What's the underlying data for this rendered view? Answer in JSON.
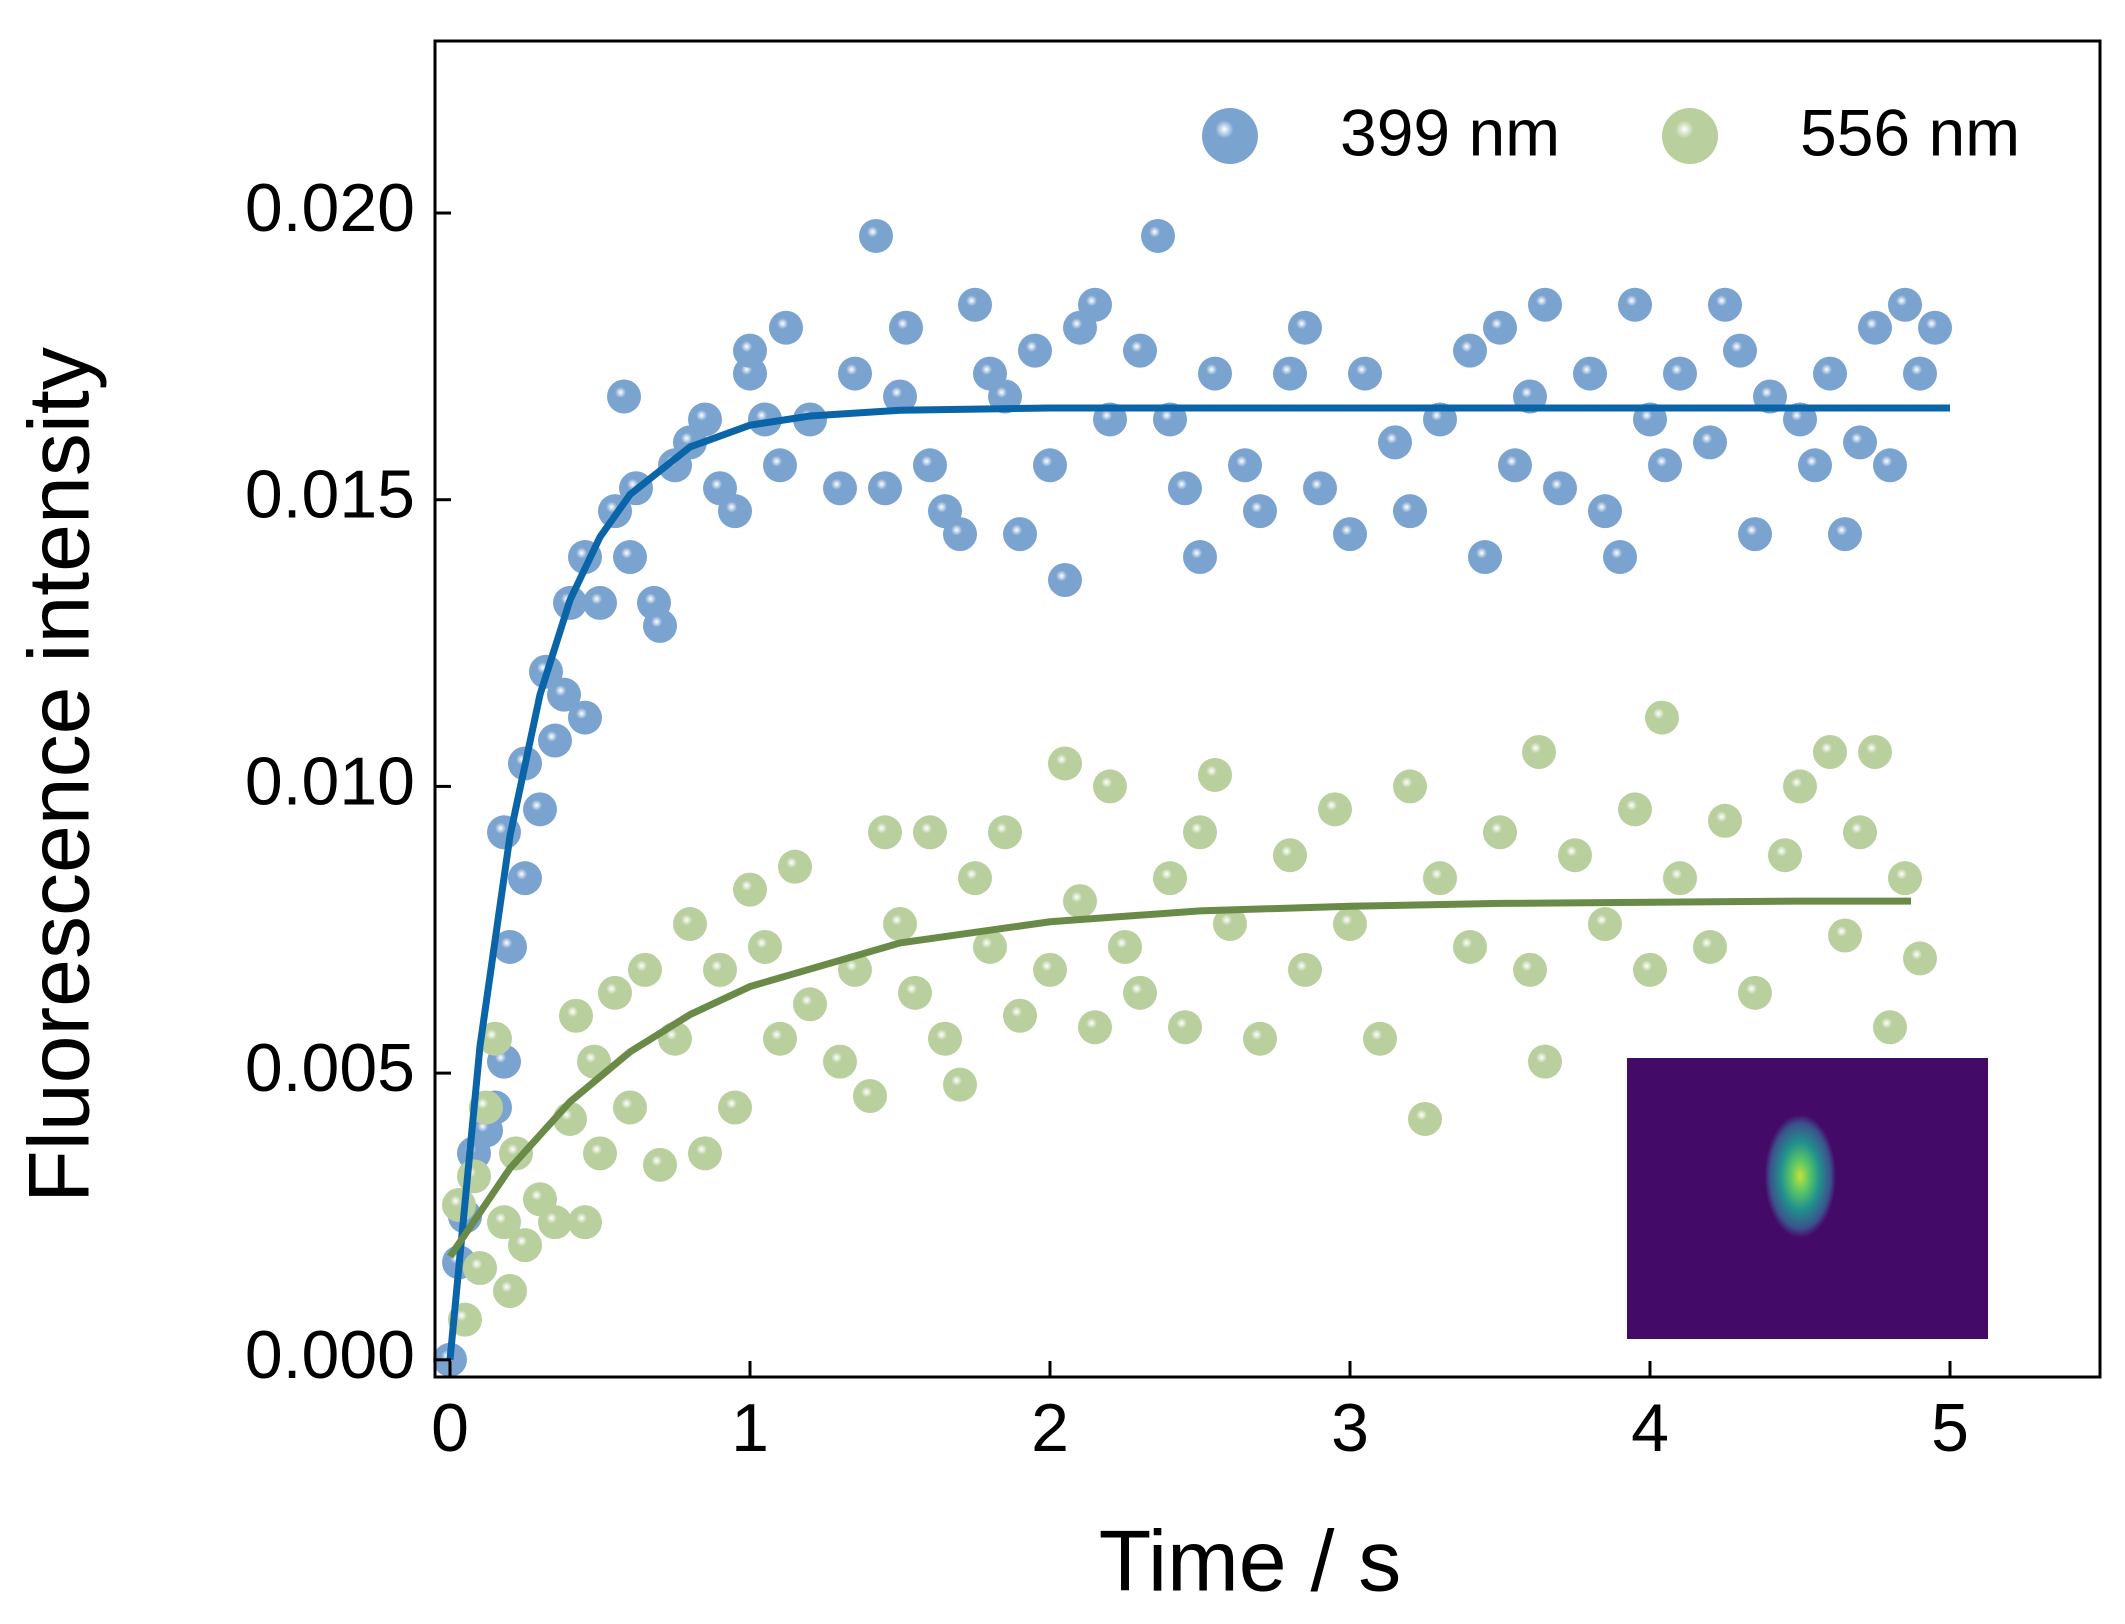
{
  "chart_data": {
    "type": "scatter",
    "xlabel": "Time / s",
    "ylabel": "Fluorescence intensity",
    "xlim": [
      -0.05,
      5.5
    ],
    "ylim": [
      -0.0003,
      0.023
    ],
    "xticks": [
      0,
      1,
      2,
      3,
      4,
      5
    ],
    "yticks": [
      {
        "value": 0,
        "label": "0.000"
      },
      {
        "value": 0.005,
        "label": "0.005"
      },
      {
        "value": 0.01,
        "label": "0.010"
      },
      {
        "value": 0.015,
        "label": "0.015"
      },
      {
        "value": 0.02,
        "label": "0.020"
      }
    ],
    "legend": "upper right",
    "series": [
      {
        "name": "399 nm",
        "color": "#7ba3d0",
        "x": [
          0,
          0.03,
          0.05,
          0.08,
          0.12,
          0.15,
          0.18,
          0.2,
          0.18,
          0.25,
          0.25,
          0.3,
          0.32,
          0.35,
          0.38,
          0.4,
          0.45,
          0.45,
          0.5,
          0.55,
          0.58,
          0.6,
          0.62,
          0.68,
          0.7,
          0.75,
          0.8,
          0.85,
          0.9,
          0.95,
          1.0,
          1.0,
          1.05,
          1.1,
          1.12,
          1.2,
          1.3,
          1.35,
          1.42,
          1.45,
          1.5,
          1.52,
          1.6,
          1.65,
          1.7,
          1.75,
          1.8,
          1.85,
          1.9,
          1.95,
          2.0,
          2.05,
          2.1,
          2.15,
          2.2,
          2.3,
          2.36,
          2.4,
          2.45,
          2.5,
          2.55,
          2.65,
          2.7,
          2.8,
          2.85,
          2.9,
          3.0,
          3.05,
          3.15,
          3.2,
          3.3,
          3.4,
          3.45,
          3.5,
          3.55,
          3.6,
          3.65,
          3.7,
          3.8,
          3.85,
          3.9,
          3.95,
          4.0,
          4.05,
          4.1,
          4.2,
          4.25,
          4.3,
          4.35,
          4.4,
          4.5,
          4.55,
          4.6,
          4.65,
          4.7,
          4.75,
          4.8,
          4.85,
          4.9,
          4.95
        ],
        "values": [
          0,
          0.0017,
          0.0025,
          0.0036,
          0.004,
          0.0044,
          0.0052,
          0.0072,
          0.0092,
          0.0084,
          0.0104,
          0.0096,
          0.012,
          0.0108,
          0.0116,
          0.0132,
          0.0112,
          0.014,
          0.0132,
          0.0148,
          0.0168,
          0.014,
          0.0152,
          0.0132,
          0.0128,
          0.0156,
          0.016,
          0.0164,
          0.0152,
          0.0148,
          0.0172,
          0.0176,
          0.0164,
          0.0156,
          0.018,
          0.0164,
          0.0152,
          0.0172,
          0.0196,
          0.0152,
          0.0168,
          0.018,
          0.0156,
          0.0148,
          0.0144,
          0.0184,
          0.0172,
          0.0168,
          0.0144,
          0.0176,
          0.0156,
          0.0136,
          0.018,
          0.0184,
          0.0164,
          0.0176,
          0.0196,
          0.0164,
          0.0152,
          0.014,
          0.0172,
          0.0156,
          0.0148,
          0.0172,
          0.018,
          0.0152,
          0.0144,
          0.0172,
          0.016,
          0.0148,
          0.0164,
          0.0176,
          0.014,
          0.018,
          0.0156,
          0.0168,
          0.0184,
          0.0152,
          0.0172,
          0.0148,
          0.014,
          0.0184,
          0.0164,
          0.0156,
          0.0172,
          0.016,
          0.0184,
          0.0176,
          0.0144,
          0.0168,
          0.0164,
          0.0156,
          0.0172,
          0.0144,
          0.016,
          0.018,
          0.0156,
          0.0184,
          0.0172,
          0.018
        ]
      },
      {
        "name": "556 nm",
        "color": "#b9cf9e",
        "x": [
          0.03,
          0.05,
          0.08,
          0.1,
          0.12,
          0.15,
          0.18,
          0.2,
          0.22,
          0.25,
          0.3,
          0.35,
          0.4,
          0.42,
          0.45,
          0.48,
          0.5,
          0.55,
          0.6,
          0.65,
          0.7,
          0.75,
          0.8,
          0.85,
          0.9,
          0.95,
          1.0,
          1.05,
          1.1,
          1.15,
          1.2,
          1.3,
          1.35,
          1.4,
          1.45,
          1.5,
          1.55,
          1.6,
          1.65,
          1.7,
          1.75,
          1.8,
          1.85,
          1.9,
          2.0,
          2.05,
          2.1,
          2.15,
          2.2,
          2.25,
          2.3,
          2.4,
          2.45,
          2.5,
          2.55,
          2.6,
          2.7,
          2.8,
          2.85,
          2.95,
          3.0,
          3.1,
          3.2,
          3.25,
          3.3,
          3.4,
          3.5,
          3.6,
          3.65,
          3.63,
          3.75,
          3.85,
          3.95,
          4.0,
          4.04,
          4.1,
          4.2,
          4.25,
          4.35,
          4.45,
          4.5,
          4.6,
          4.65,
          4.7,
          4.75,
          4.8,
          4.85,
          4.9
        ],
        "values": [
          0.0027,
          0.0007,
          0.0032,
          0.0016,
          0.0044,
          0.0056,
          0.0024,
          0.0012,
          0.0036,
          0.002,
          0.0028,
          0.0024,
          0.0042,
          0.006,
          0.0024,
          0.0052,
          0.0036,
          0.0064,
          0.0044,
          0.0068,
          0.0034,
          0.0056,
          0.0076,
          0.0036,
          0.0068,
          0.0044,
          0.0082,
          0.0072,
          0.0056,
          0.0086,
          0.0062,
          0.0052,
          0.0068,
          0.0046,
          0.0092,
          0.0076,
          0.0064,
          0.0092,
          0.0056,
          0.0048,
          0.0084,
          0.0072,
          0.0092,
          0.006,
          0.0068,
          0.0104,
          0.008,
          0.0058,
          0.01,
          0.0072,
          0.0064,
          0.0084,
          0.0058,
          0.0092,
          0.0102,
          0.0076,
          0.0056,
          0.0088,
          0.0068,
          0.0096,
          0.0076,
          0.0056,
          0.01,
          0.0042,
          0.0084,
          0.0072,
          0.0092,
          0.0068,
          0.0052,
          0.0106,
          0.0088,
          0.0076,
          0.0096,
          0.0068,
          0.0112,
          0.0084,
          0.0072,
          0.0094,
          0.0064,
          0.0088,
          0.01,
          0.0106,
          0.0074,
          0.0092,
          0.0106,
          0.0058,
          0.0084,
          0.007
        ]
      }
    ],
    "fits": [
      {
        "color": "#0a64a8",
        "x": [
          0,
          0.1,
          0.2,
          0.3,
          0.4,
          0.5,
          0.6,
          0.8,
          1.0,
          1.2,
          1.5,
          2,
          3,
          4,
          5
        ],
        "values": [
          0,
          0.00547,
          0.00914,
          0.0116,
          0.01325,
          0.01435,
          0.01509,
          0.01592,
          0.0163,
          0.01646,
          0.01656,
          0.0166,
          0.0166,
          0.0166,
          0.0166
        ]
      },
      {
        "color": "#6a8a48",
        "x": [
          0,
          0.2,
          0.4,
          0.6,
          0.8,
          1,
          1.5,
          2,
          2.5,
          3,
          3.5,
          4,
          4.5,
          4.87
        ],
        "values": [
          0.0018,
          0.00334,
          0.0045,
          0.00537,
          0.00602,
          0.00651,
          0.00727,
          0.00764,
          0.00783,
          0.00791,
          0.00796,
          0.00798,
          0.008,
          0.008
        ]
      }
    ]
  }
}
